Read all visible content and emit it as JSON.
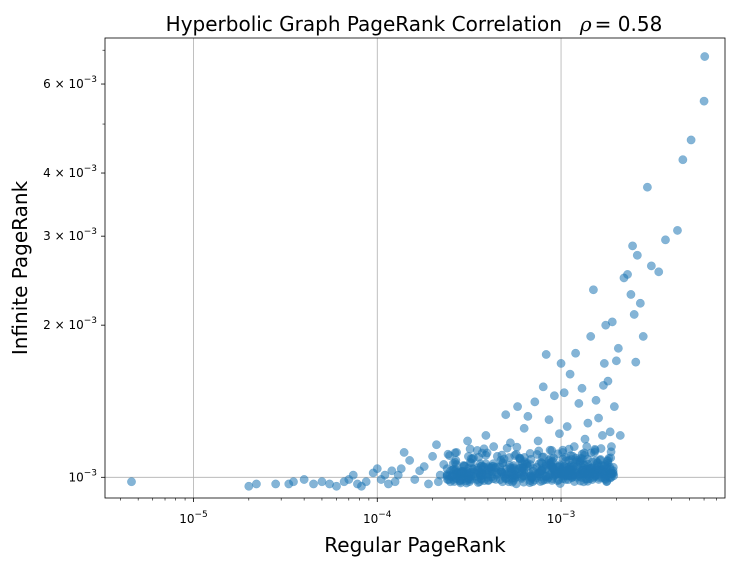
{
  "chart_data": {
    "type": "scatter",
    "title": "Hyperbolic Graph PageRank Correlation",
    "title_rho_symbol": "ρ",
    "title_rho_value": "= 0.58",
    "xlabel": "Regular PageRank",
    "ylabel": "Infinite PageRank",
    "x_scale": "log",
    "y_scale": "log",
    "xlim": [
      3.3e-06,
      0.0078
    ],
    "ylim": [
      0.00091,
      0.0074
    ],
    "grid": true,
    "marker_color": "#1f77b4",
    "x_ticks": [
      {
        "value": 1e-05,
        "base": "10",
        "exp": "−5"
      },
      {
        "value": 0.0001,
        "base": "10",
        "exp": "−4"
      },
      {
        "value": 0.001,
        "base": "10",
        "exp": "−3"
      }
    ],
    "y_ticks": [
      {
        "value": 0.001,
        "mant": "",
        "base": "10",
        "exp": "−3"
      },
      {
        "value": 0.002,
        "mant": "2 × ",
        "base": "10",
        "exp": "−3"
      },
      {
        "value": 0.003,
        "mant": "3 × ",
        "base": "10",
        "exp": "−3"
      },
      {
        "value": 0.004,
        "mant": "4 × ",
        "base": "10",
        "exp": "−3"
      },
      {
        "value": 0.006,
        "mant": "6 × ",
        "base": "10",
        "exp": "−3"
      }
    ],
    "points": [
      [
        4.6e-06,
        0.00098
      ],
      [
        2e-05,
        0.00096
      ],
      [
        2.2e-05,
        0.00097
      ],
      [
        2.8e-05,
        0.00097
      ],
      [
        3.3e-05,
        0.00097
      ],
      [
        3.5e-05,
        0.00098
      ],
      [
        4e-05,
        0.00099
      ],
      [
        4.5e-05,
        0.00097
      ],
      [
        5e-05,
        0.00098
      ],
      [
        5.5e-05,
        0.00097
      ],
      [
        6e-05,
        0.00096
      ],
      [
        6.6e-05,
        0.00098
      ],
      [
        7e-05,
        0.00099
      ],
      [
        7.4e-05,
        0.00101
      ],
      [
        7.8e-05,
        0.00097
      ],
      [
        8.2e-05,
        0.00096
      ],
      [
        8.7e-05,
        0.00098
      ],
      [
        9.5e-05,
        0.00102
      ],
      [
        0.0001,
        0.00104
      ],
      [
        0.000105,
        0.00099
      ],
      [
        0.00011,
        0.00101
      ],
      [
        0.000115,
        0.00097
      ],
      [
        0.00012,
        0.00103
      ],
      [
        0.000125,
        0.00098
      ],
      [
        0.00013,
        0.00101
      ],
      [
        0.000135,
        0.00104
      ],
      [
        0.00014,
        0.00112
      ],
      [
        0.00015,
        0.00108
      ],
      [
        0.00016,
        0.00099
      ],
      [
        0.00017,
        0.00103
      ],
      [
        0.00018,
        0.00105
      ],
      [
        0.00019,
        0.00097
      ],
      [
        0.0002,
        0.0011
      ],
      [
        0.00021,
        0.00116
      ],
      [
        0.00022,
        0.00101
      ],
      [
        0.00023,
        0.00106
      ],
      [
        0.00025,
        0.00098
      ],
      [
        0.00027,
        0.00112
      ],
      [
        0.00029,
        0.001
      ],
      [
        0.00031,
        0.00118
      ],
      [
        0.00033,
        0.00104
      ],
      [
        0.00035,
        0.00113
      ],
      [
        0.00037,
        0.00099
      ],
      [
        0.00039,
        0.00121
      ],
      [
        0.00042,
        0.00105
      ],
      [
        0.00045,
        0.0011
      ],
      [
        0.00048,
        0.00098
      ],
      [
        0.0005,
        0.00133
      ],
      [
        0.00053,
        0.00117
      ],
      [
        0.00056,
        0.00103
      ],
      [
        0.00058,
        0.00138
      ],
      [
        0.0006,
        0.00109
      ],
      [
        0.00063,
        0.00125
      ],
      [
        0.00066,
        0.00132
      ],
      [
        0.00069,
        0.001
      ],
      [
        0.00072,
        0.00141
      ],
      [
        0.00075,
        0.00118
      ],
      [
        0.00078,
        0.00107
      ],
      [
        0.0008,
        0.00151
      ],
      [
        0.00083,
        0.00175
      ],
      [
        0.00086,
        0.0013
      ],
      [
        0.00089,
        0.00113
      ],
      [
        0.00092,
        0.00145
      ],
      [
        0.00095,
        0.00102
      ],
      [
        0.00098,
        0.00122
      ],
      [
        0.001,
        0.00168
      ],
      [
        0.00104,
        0.00147
      ],
      [
        0.00108,
        0.00126
      ],
      [
        0.00112,
        0.0016
      ],
      [
        0.00116,
        0.0011
      ],
      [
        0.0012,
        0.00176
      ],
      [
        0.00125,
        0.0014
      ],
      [
        0.0013,
        0.0015
      ],
      [
        0.00135,
        0.00119
      ],
      [
        0.0014,
        0.00128
      ],
      [
        0.00145,
        0.0019
      ],
      [
        0.0015,
        0.00235
      ],
      [
        0.00155,
        0.00142
      ],
      [
        0.0016,
        0.00131
      ],
      [
        0.00165,
        0.00114
      ],
      [
        0.0017,
        0.00152
      ],
      [
        0.00175,
        0.002
      ],
      [
        0.0018,
        0.00155
      ],
      [
        0.00185,
        0.00123
      ],
      [
        0.0019,
        0.00203
      ],
      [
        0.00195,
        0.00138
      ],
      [
        0.002,
        0.0017
      ],
      [
        0.00205,
        0.0018
      ],
      [
        0.0021,
        0.00121
      ],
      [
        0.0022,
        0.00248
      ],
      [
        0.0023,
        0.00252
      ],
      [
        0.0024,
        0.0023
      ],
      [
        0.00245,
        0.00287
      ],
      [
        0.0025,
        0.0021
      ],
      [
        0.00255,
        0.00169
      ],
      [
        0.0026,
        0.00275
      ],
      [
        0.0027,
        0.00221
      ],
      [
        0.0028,
        0.0019
      ],
      [
        0.00295,
        0.00375
      ],
      [
        0.0031,
        0.00262
      ],
      [
        0.0034,
        0.00255
      ],
      [
        0.0037,
        0.00295
      ],
      [
        0.0043,
        0.00308
      ],
      [
        0.0046,
        0.00425
      ],
      [
        0.0051,
        0.00465
      ],
      [
        0.006,
        0.00555
      ],
      [
        0.00605,
        0.0068
      ],
      [
        0.00172,
        0.00168
      ],
      [
        0.00178,
        0.00104
      ],
      [
        0.00182,
        0.00109
      ],
      [
        0.00188,
        0.00115
      ],
      [
        0.00192,
        0.00103
      ],
      [
        0.00168,
        0.00121
      ],
      [
        0.00162,
        0.00101
      ],
      [
        0.00158,
        0.00107
      ],
      [
        0.00152,
        0.00112
      ],
      [
        0.00148,
        0.00099
      ],
      [
        0.00142,
        0.00104
      ],
      [
        0.00138,
        0.00115
      ],
      [
        0.00132,
        0.00102
      ],
      [
        0.00128,
        0.00109
      ],
      [
        0.00122,
        0.001
      ],
      [
        0.00118,
        0.00115
      ],
      [
        0.00114,
        0.00103
      ],
      [
        0.0011,
        0.00108
      ],
      [
        0.00106,
        0.00099
      ],
      [
        0.00102,
        0.00112
      ],
      [
        0.00097,
        0.00105
      ],
      [
        0.00093,
        0.00101
      ],
      [
        0.00088,
        0.00109
      ],
      [
        0.00084,
        0.00099
      ],
      [
        0.00079,
        0.00104
      ],
      [
        0.00074,
        0.00111
      ],
      [
        0.0007,
        0.00098
      ],
      [
        0.00065,
        0.00106
      ],
      [
        0.00061,
        0.001
      ],
      [
        0.00057,
        0.00111
      ],
      [
        0.00052,
        0.00098
      ],
      [
        0.00047,
        0.00103
      ],
      [
        0.00043,
        0.00115
      ],
      [
        0.0004,
        0.00101
      ],
      [
        0.00036,
        0.00098
      ],
      [
        0.00032,
        0.00107
      ],
      [
        0.00028,
        0.00102
      ],
      [
        0.00026,
        0.00099
      ],
      [
        0.00024,
        0.00104
      ],
      [
        0.000215,
        0.00098
      ]
    ]
  }
}
